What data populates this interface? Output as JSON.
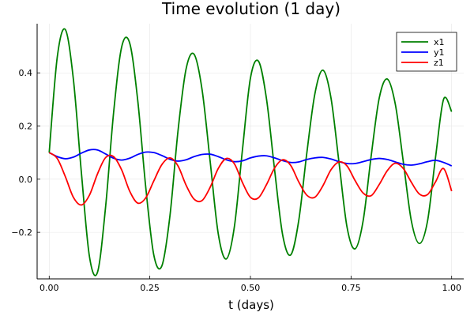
{
  "chart_data": {
    "type": "line",
    "title": "Time evolution (1 day)",
    "xlabel": "t (days)",
    "ylabel": "",
    "xlim": [
      -0.03,
      1.03
    ],
    "ylim": [
      -0.375,
      0.585
    ],
    "xticks": [
      0.0,
      0.25,
      0.5,
      0.75,
      1.0
    ],
    "xtick_labels": [
      "0.00",
      "0.25",
      "0.50",
      "0.75",
      "1.00"
    ],
    "yticks": [
      -0.2,
      0.0,
      0.2,
      0.4
    ],
    "ytick_labels": [
      "−0.2",
      "0.0",
      "0.2",
      "0.4"
    ],
    "grid": true,
    "legend_position": "top-right",
    "x": [
      0.0,
      0.02,
      0.04,
      0.06,
      0.08,
      0.1,
      0.12,
      0.14,
      0.16,
      0.18,
      0.2,
      0.22,
      0.24,
      0.26,
      0.28,
      0.3,
      0.32,
      0.34,
      0.36,
      0.38,
      0.4,
      0.42,
      0.44,
      0.46,
      0.48,
      0.5,
      0.52,
      0.54,
      0.56,
      0.58,
      0.6,
      0.62,
      0.64,
      0.66,
      0.68,
      0.7,
      0.72,
      0.74,
      0.76,
      0.78,
      0.8,
      0.82,
      0.84,
      0.86,
      0.88,
      0.9,
      0.92,
      0.94,
      0.96,
      0.98,
      1.0
    ],
    "series": [
      {
        "name": "x1",
        "color": "#008000",
        "values": [
          0.1,
          0.459,
          0.563,
          0.377,
          0.024,
          -0.291,
          -0.35,
          -0.106,
          0.25,
          0.497,
          0.512,
          0.296,
          -0.032,
          -0.286,
          -0.326,
          -0.138,
          0.181,
          0.414,
          0.47,
          0.335,
          0.066,
          -0.205,
          -0.3,
          -0.18,
          0.108,
          0.38,
          0.444,
          0.301,
          0.036,
          -0.209,
          -0.285,
          -0.156,
          0.097,
          0.32,
          0.41,
          0.307,
          0.064,
          -0.18,
          -0.262,
          -0.157,
          0.087,
          0.305,
          0.377,
          0.282,
          0.064,
          -0.158,
          -0.242,
          -0.158,
          0.083,
          0.301,
          0.254
        ]
      },
      {
        "name": "y1",
        "color": "#0000ff",
        "values": [
          0.1,
          0.085,
          0.077,
          0.083,
          0.098,
          0.11,
          0.11,
          0.095,
          0.079,
          0.072,
          0.079,
          0.093,
          0.102,
          0.1,
          0.089,
          0.075,
          0.068,
          0.073,
          0.085,
          0.093,
          0.094,
          0.085,
          0.073,
          0.066,
          0.069,
          0.08,
          0.087,
          0.088,
          0.08,
          0.07,
          0.063,
          0.065,
          0.074,
          0.08,
          0.082,
          0.076,
          0.066,
          0.059,
          0.059,
          0.066,
          0.074,
          0.078,
          0.074,
          0.065,
          0.056,
          0.053,
          0.058,
          0.066,
          0.071,
          0.063,
          0.05
        ]
      },
      {
        "name": "z1",
        "color": "#ff0000",
        "values": [
          0.1,
          0.078,
          0.01,
          -0.068,
          -0.097,
          -0.06,
          0.02,
          0.081,
          0.085,
          0.035,
          -0.045,
          -0.09,
          -0.07,
          -0.006,
          0.055,
          0.08,
          0.05,
          -0.022,
          -0.075,
          -0.08,
          -0.03,
          0.04,
          0.078,
          0.058,
          -0.012,
          -0.068,
          -0.07,
          -0.02,
          0.042,
          0.073,
          0.052,
          -0.01,
          -0.06,
          -0.068,
          -0.025,
          0.035,
          0.065,
          0.05,
          -0.005,
          -0.052,
          -0.062,
          -0.02,
          0.032,
          0.06,
          0.04,
          -0.012,
          -0.056,
          -0.058,
          -0.01,
          0.04,
          -0.045
        ]
      }
    ]
  }
}
